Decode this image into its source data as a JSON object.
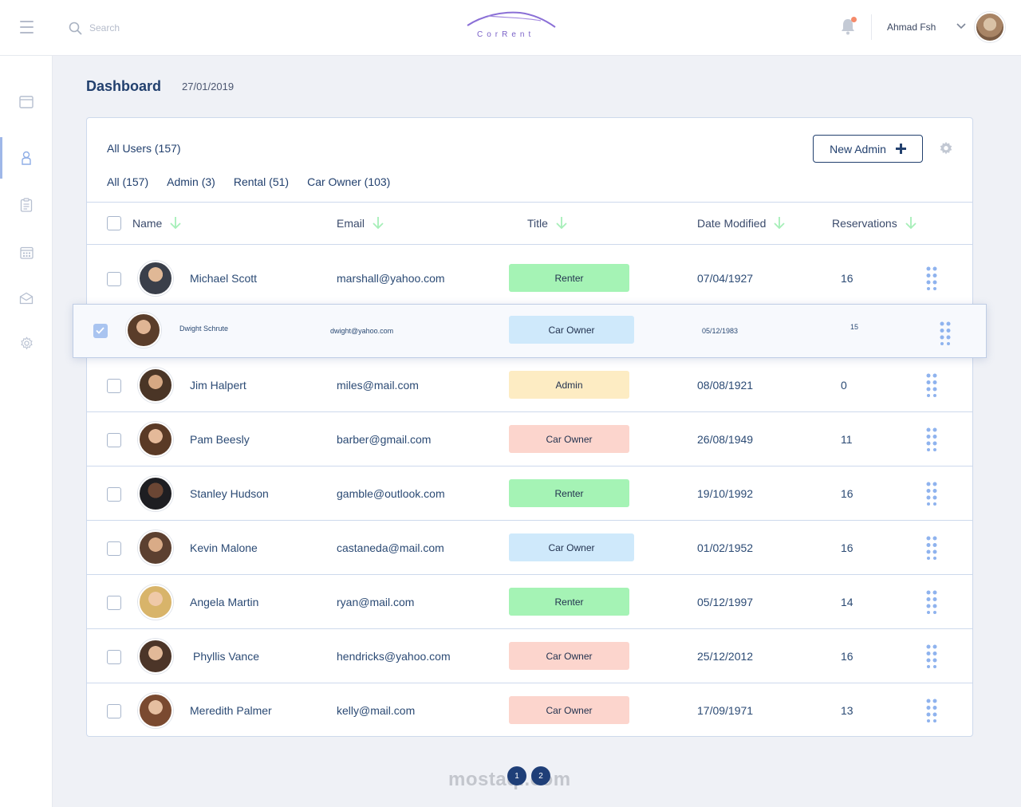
{
  "topbar": {
    "search_placeholder": "Search",
    "logo_text": "CorRent",
    "user_name": "Ahmad Fsh"
  },
  "page": {
    "title": "Dashboard",
    "date": "27/01/2019"
  },
  "card": {
    "title": "All Users  (157)",
    "new_admin_label": "New Admin",
    "filters": [
      "All (157)",
      "Admin (3)",
      "Rental (51)",
      "Car Owner (103)"
    ],
    "columns": {
      "name": "Name",
      "email": "Email",
      "title": "Title",
      "date": "Date Modified",
      "reservations": "Reservations"
    }
  },
  "badge_colors": {
    "Renter": "#a5f3b5",
    "Car Owner": "#cfe9fb",
    "Admin": "#fdecc3",
    "Car Owner (alt)": "#fcd5cd"
  },
  "rows": [
    {
      "name": "Michael Scott",
      "email": "marshall@yahoo.com",
      "title": "Renter",
      "date": "07/04/1927",
      "reservations": "16"
    },
    {
      "name": "Jim Halpert",
      "email": "miles@mail.com",
      "title": "Admin",
      "date": "08/08/1921",
      "reservations": "0"
    },
    {
      "name": "Pam Beesly",
      "email": "barber@gmail.com",
      "title": "Car Owner",
      "date": "26/08/1949",
      "reservations": "11"
    },
    {
      "name": "Stanley Hudson",
      "email": "gamble@outlook.com",
      "title": "Renter",
      "date": "19/10/1992",
      "reservations": "16"
    },
    {
      "name": "Kevin Malone",
      "email": "castaneda@mail.com",
      "title": "Car Owner",
      "date": "01/02/1952",
      "reservations": "16"
    },
    {
      "name": "Angela Martin",
      "email": "ryan@mail.com",
      "title": "Renter",
      "date": "05/12/1997",
      "reservations": "14"
    },
    {
      "name": "Phyllis Vance",
      "email": "hendricks@yahoo.com",
      "title": "Car Owner",
      "date": "25/12/2012",
      "reservations": "16"
    },
    {
      "name": "Meredith Palmer",
      "email": "kelly@mail.com",
      "title": "Car Owner",
      "date": "17/09/1971",
      "reservations": "13"
    }
  ],
  "selected_row": {
    "name": "Dwight Schrute",
    "email": "dwight@yahoo.com",
    "title": "Car Owner",
    "date": "05/12/1983",
    "reservations": "15"
  },
  "pagination": [
    "1",
    "2"
  ],
  "watermark": "mostaql.com"
}
